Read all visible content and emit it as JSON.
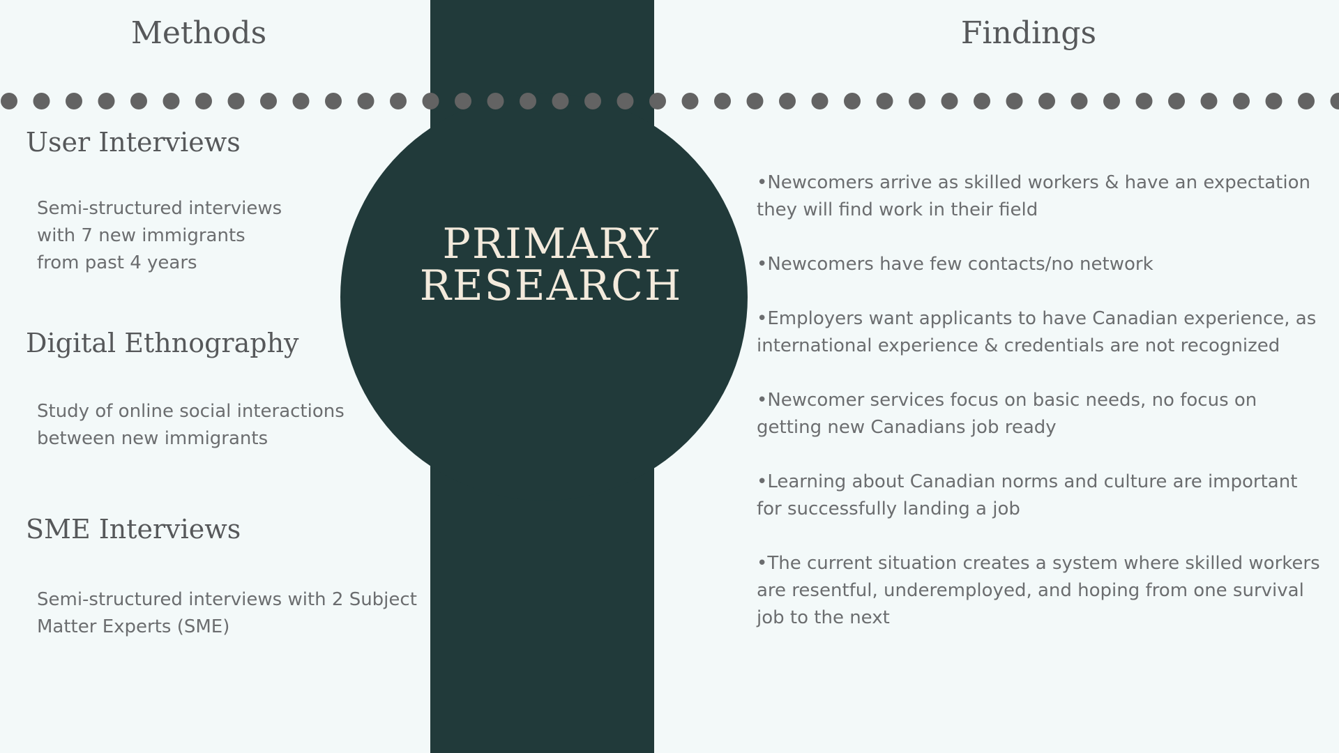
{
  "headings": {
    "methods": "Methods",
    "findings": "Findings"
  },
  "center_title": {
    "line1": "PRIMARY",
    "line2": "RESEARCH"
  },
  "methods": [
    {
      "title": "User Interviews",
      "description": "Semi-structured interviews\nwith 7 new immigrants\nfrom past 4 years"
    },
    {
      "title": "Digital Ethnography",
      "description": "Study of online social interactions\nbetween new immigrants"
    },
    {
      "title": "SME Interviews",
      "description": " Semi-structured interviews with 2 Subject\nMatter Experts (SME)"
    }
  ],
  "findings": [
    "•Newcomers arrive as skilled workers & have an expectation they will find work in their field",
    "•Newcomers have few contacts/no network",
    "•Employers want applicants to have Canadian experience, as international experience & credentials are not recognized",
    "•Newcomer services focus on basic needs, no focus on getting new Canadians job ready",
    "•Learning about Canadian norms and culture are important for successfully landing a job",
    "•The current situation creates a system where skilled workers are resentful, underemployed, and hoping from one survival job to the next"
  ],
  "colors": {
    "background": "#f3f9f9",
    "accent_dark": "#213a3a",
    "dot": "#636363",
    "title_cream": "#f3eadc",
    "text_gray": "#6b6d6f"
  }
}
